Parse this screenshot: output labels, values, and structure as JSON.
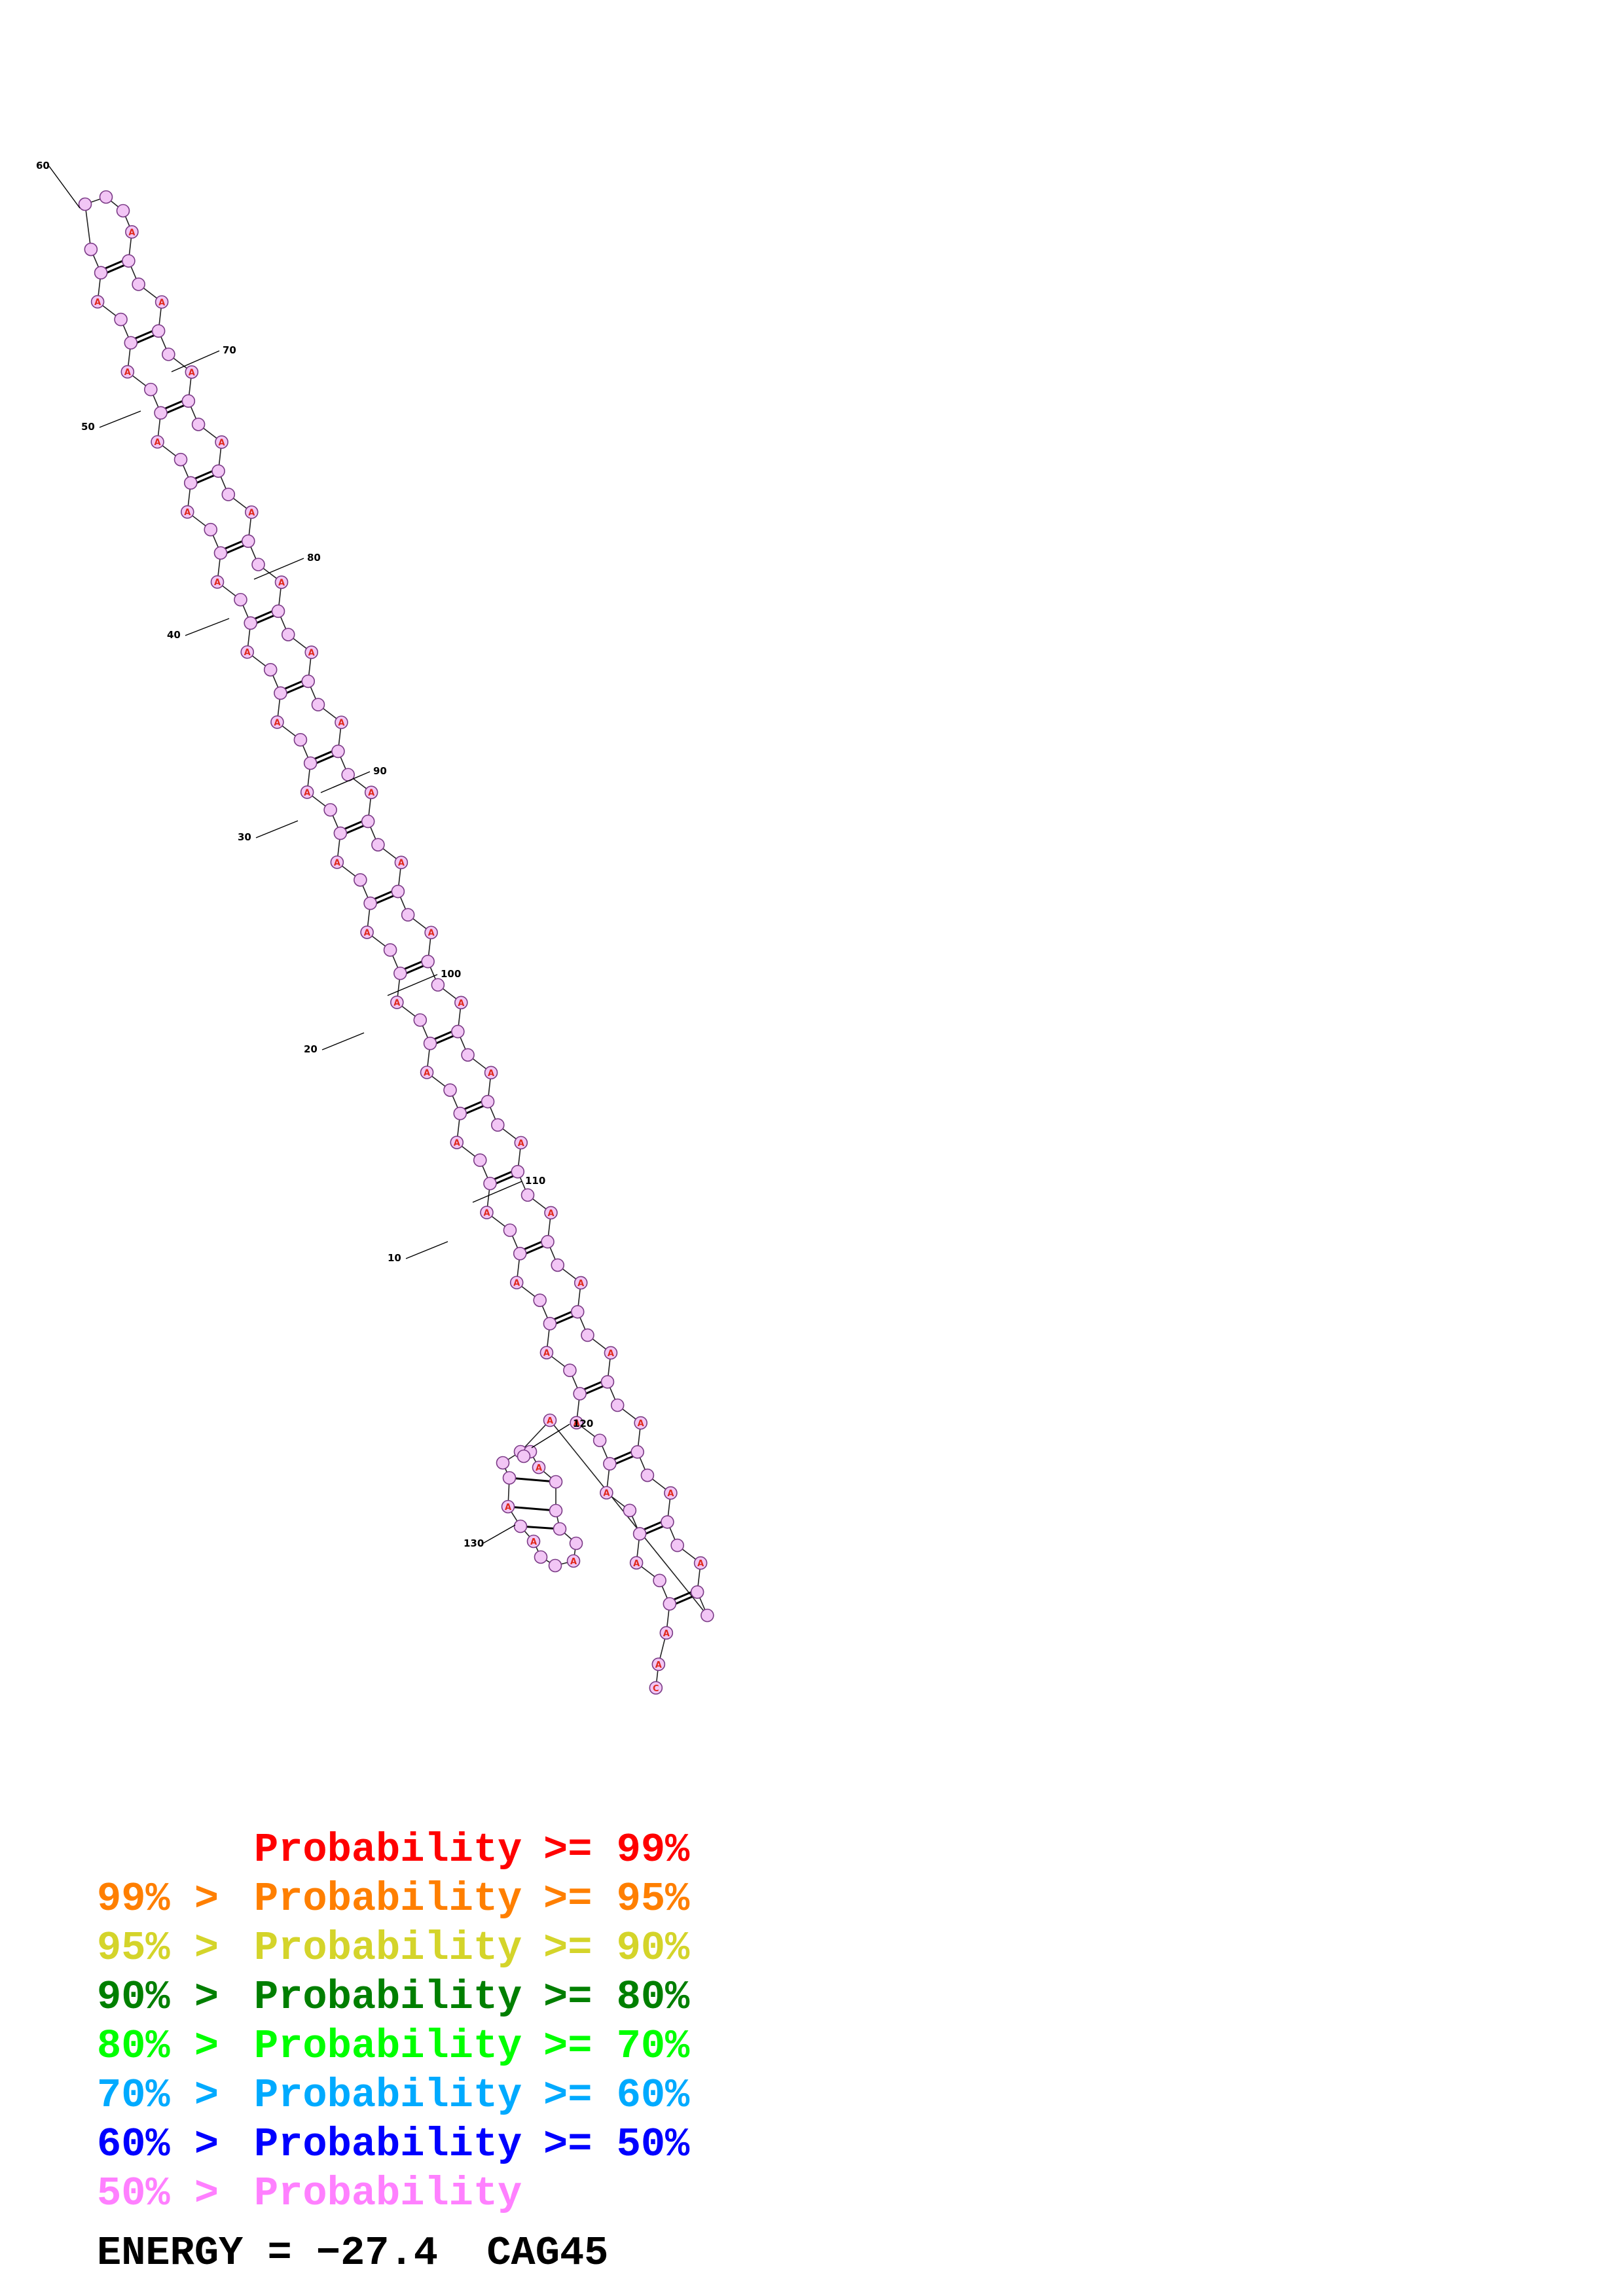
{
  "diagram": {
    "type": "rna-secondary-structure",
    "nucleotide_fill": "#f2c6f5",
    "nucleotide_stroke": "#7a3a86",
    "highlight_letter": "A",
    "highlight_color": "#e0281a",
    "position_labels": [
      "60",
      "70",
      "50",
      "80",
      "40",
      "90",
      "30",
      "100",
      "20",
      "110",
      "10",
      "120",
      "130"
    ],
    "five_prime_tail": [
      "A",
      "C"
    ]
  },
  "legend": [
    {
      "prefix": "",
      "middle": "Probability",
      "suffix": ">= 99%",
      "color": "#ff0000"
    },
    {
      "prefix": "99% >",
      "middle": "Probability",
      "suffix": ">= 95%",
      "color": "#ff7f00"
    },
    {
      "prefix": "95% >",
      "middle": "Probability",
      "suffix": ">= 90%",
      "color": "#d4d42a"
    },
    {
      "prefix": "90% >",
      "middle": "Probability",
      "suffix": ">= 80%",
      "color": "#007f00"
    },
    {
      "prefix": "80% >",
      "middle": "Probability",
      "suffix": ">= 70%",
      "color": "#00ff00"
    },
    {
      "prefix": "70% >",
      "middle": "Probability",
      "suffix": ">= 60%",
      "color": "#00aaff"
    },
    {
      "prefix": "60% >",
      "middle": "Probability",
      "suffix": ">= 50%",
      "color": "#0000ff"
    },
    {
      "prefix": "50% >",
      "middle": "Probability",
      "suffix": "",
      "color": "#ff80ff"
    }
  ],
  "energy": {
    "label": "ENERGY =",
    "value": "−27.4",
    "sequence_name": "CAG45"
  }
}
